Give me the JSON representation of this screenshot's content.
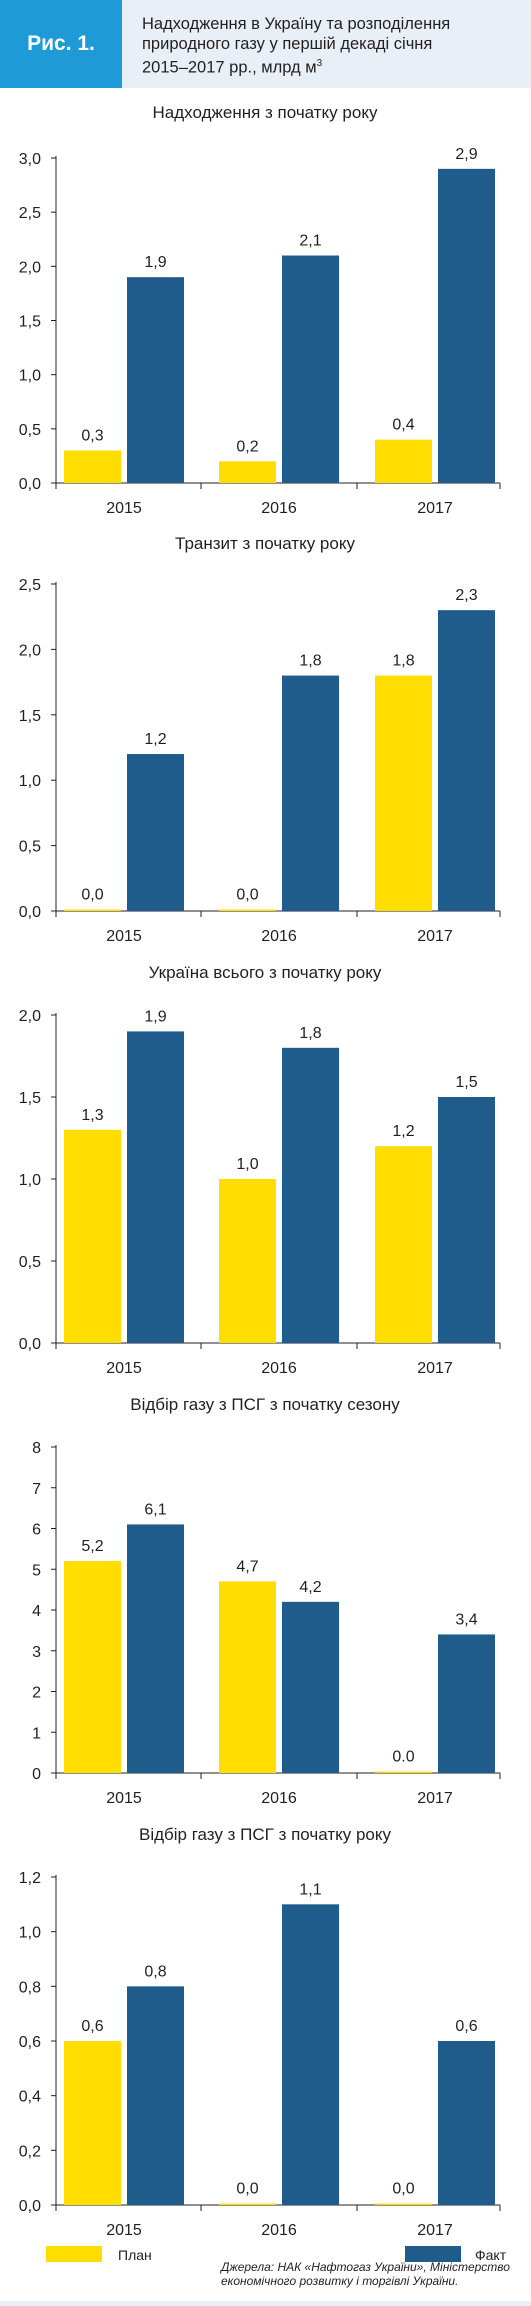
{
  "figure": {
    "label": "Рис. 1.",
    "title_line1": "Надходження в Україну та розподілення",
    "title_line2": "природного газу у першій декаді січня",
    "title_line3": "2015–2017 рр., млрд м",
    "title_sup": "3",
    "source": "Джерела: НАК «Нафтогаз України», Міністерство економічного розвитку і торгівлі України."
  },
  "legend": {
    "plan": "План",
    "fact": "Факт"
  },
  "colors": {
    "plan": "#ffdd00",
    "fact": "#1f5c8b",
    "badge": "#1e9bd7",
    "panel_bg": "#e9eff6"
  },
  "chart_data": [
    {
      "type": "bar",
      "title": "Надходження з початку року",
      "categories": [
        "2015",
        "2016",
        "2017"
      ],
      "series": [
        {
          "name": "План",
          "values": [
            0.3,
            0.2,
            0.4
          ],
          "labels": [
            "0,3",
            "0,2",
            "0,4"
          ]
        },
        {
          "name": "Факт",
          "values": [
            1.9,
            2.1,
            2.9
          ],
          "labels": [
            "1,9",
            "2,1",
            "2,9"
          ]
        }
      ],
      "ylim": [
        0,
        3.0
      ],
      "yticks": [
        "0,0",
        "0,5",
        "1,0",
        "1,5",
        "2,0",
        "2,5",
        "3,0"
      ],
      "ytick_values": [
        0,
        0.5,
        1.0,
        1.5,
        2.0,
        2.5,
        3.0
      ]
    },
    {
      "type": "bar",
      "title": "Транзит з початку року",
      "categories": [
        "2015",
        "2016",
        "2017"
      ],
      "series": [
        {
          "name": "План",
          "values": [
            0.0,
            0.0,
            1.8
          ],
          "labels": [
            "0,0",
            "0,0",
            "1,8"
          ]
        },
        {
          "name": "Факт",
          "values": [
            1.2,
            1.8,
            2.3
          ],
          "labels": [
            "1,2",
            "1,8",
            "2,3"
          ]
        }
      ],
      "ylim": [
        0,
        2.5
      ],
      "yticks": [
        "0,0",
        "0,5",
        "1,0",
        "1,5",
        "2,0",
        "2,5"
      ],
      "ytick_values": [
        0,
        0.5,
        1.0,
        1.5,
        2.0,
        2.5
      ]
    },
    {
      "type": "bar",
      "title": "Україна всього з початку року",
      "categories": [
        "2015",
        "2016",
        "2017"
      ],
      "series": [
        {
          "name": "План",
          "values": [
            1.3,
            1.0,
            1.2
          ],
          "labels": [
            "1,3",
            "1,0",
            "1,2"
          ]
        },
        {
          "name": "Факт",
          "values": [
            1.9,
            1.8,
            1.5
          ],
          "labels": [
            "1,9",
            "1,8",
            "1,5"
          ]
        }
      ],
      "ylim": [
        0,
        2.0
      ],
      "yticks": [
        "0,0",
        "0,5",
        "1,0",
        "1,5",
        "2,0"
      ],
      "ytick_values": [
        0,
        0.5,
        1.0,
        1.5,
        2.0
      ]
    },
    {
      "type": "bar",
      "title": "Відбір газу з ПСГ з початку сезону",
      "categories": [
        "2015",
        "2016",
        "2017"
      ],
      "series": [
        {
          "name": "План",
          "values": [
            5.2,
            4.7,
            0.0
          ],
          "labels": [
            "5,2",
            "4,7",
            "0.0"
          ]
        },
        {
          "name": "Факт",
          "values": [
            6.1,
            4.2,
            3.4
          ],
          "labels": [
            "6,1",
            "4,2",
            "3,4"
          ]
        }
      ],
      "ylim": [
        0,
        8
      ],
      "yticks": [
        "0",
        "1",
        "2",
        "3",
        "4",
        "5",
        "6",
        "7",
        "8"
      ],
      "ytick_values": [
        0,
        1,
        2,
        3,
        4,
        5,
        6,
        7,
        8
      ]
    },
    {
      "type": "bar",
      "title": "Відбір газу з ПСГ з початку року",
      "categories": [
        "2015",
        "2016",
        "2017"
      ],
      "series": [
        {
          "name": "План",
          "values": [
            0.6,
            0.0,
            0.0
          ],
          "labels": [
            "0,6",
            "0,0",
            "0,0"
          ]
        },
        {
          "name": "Факт",
          "values": [
            0.8,
            1.1,
            0.6
          ],
          "labels": [
            "0,8",
            "1,1",
            "0,6"
          ]
        }
      ],
      "ylim": [
        0,
        1.2
      ],
      "yticks": [
        "0,0",
        "0,2",
        "0,4",
        "0,6",
        "0,8",
        "1,0",
        "1,2"
      ],
      "ytick_values": [
        0,
        0.2,
        0.4,
        0.6,
        0.8,
        1.0,
        1.2
      ]
    }
  ]
}
